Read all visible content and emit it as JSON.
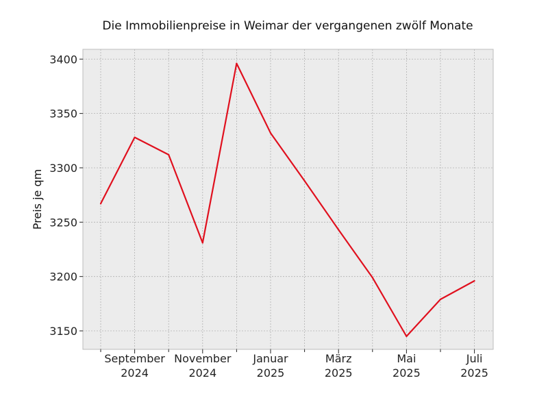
{
  "chart_data": {
    "type": "line",
    "title": "Die Immobilienpreise in Weimar der vergangenen zwölf Monate",
    "xlabel": "",
    "ylabel": "Preis je qm",
    "x": [
      "2024-08",
      "2024-09",
      "2024-10",
      "2024-11",
      "2024-12",
      "2025-01",
      "2025-02",
      "2025-03",
      "2025-04",
      "2025-05",
      "2025-06",
      "2025-07"
    ],
    "series": [
      {
        "values": [
          3267,
          3328,
          3312,
          3231,
          3396,
          3332,
          3288,
          3243,
          3199,
          3145,
          3179,
          3196
        ]
      }
    ],
    "ylim": [
      3133,
      3409
    ],
    "yticks": [
      3150,
      3200,
      3250,
      3300,
      3350,
      3400
    ],
    "xticks": [
      {
        "x": "2024-09",
        "line1": "September",
        "line2": "2024"
      },
      {
        "x": "2024-11",
        "line1": "November",
        "line2": "2024"
      },
      {
        "x": "2025-01",
        "line1": "Januar",
        "line2": "2025"
      },
      {
        "x": "2025-03",
        "line1": "März",
        "line2": "2025"
      },
      {
        "x": "2025-05",
        "line1": "Mai",
        "line2": "2025"
      },
      {
        "x": "2025-07",
        "line1": "Juli",
        "line2": "2025"
      }
    ],
    "minor_xticks": [
      "2024-08",
      "2024-10",
      "2024-12",
      "2025-02",
      "2025-04",
      "2025-06"
    ],
    "grid": true,
    "colors": {
      "line": "#e0101e",
      "plot_background": "#ececec",
      "grid": "#b0b0b0",
      "frame": "#bcbcbc"
    }
  }
}
